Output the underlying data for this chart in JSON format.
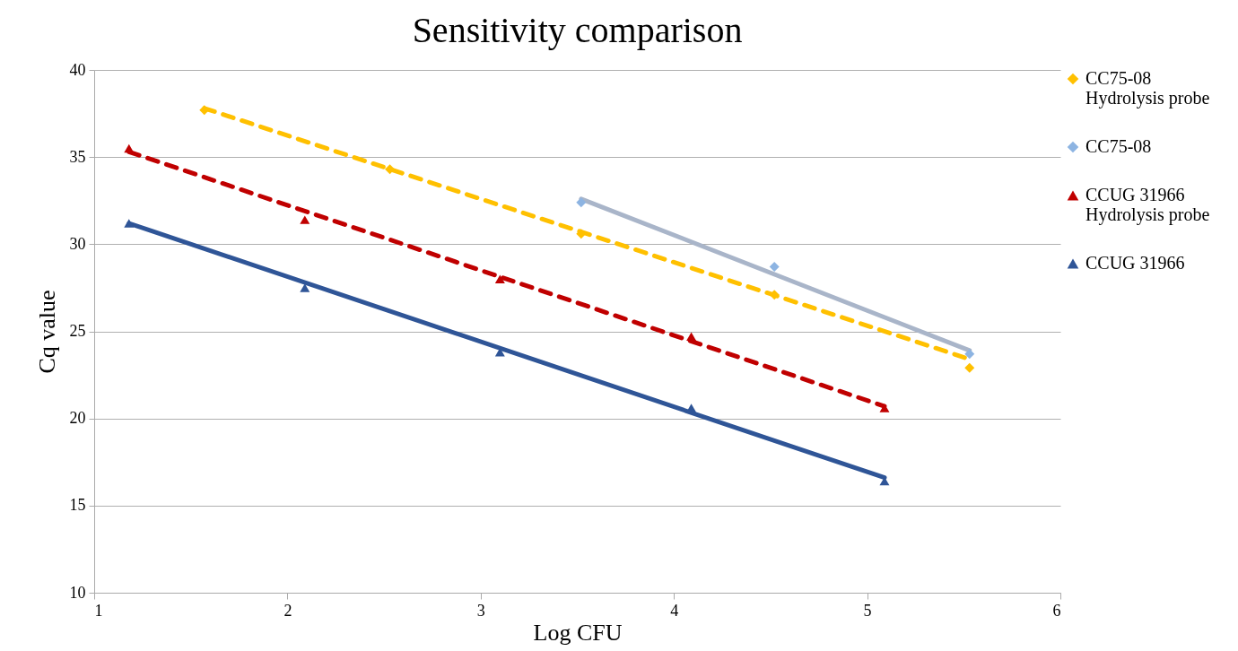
{
  "chart_data": {
    "type": "scatter",
    "title": "Sensitivity comparison",
    "xlabel": "Log CFU",
    "ylabel": "Cq value",
    "xlim": [
      1,
      6
    ],
    "xticks": [
      1,
      2,
      3,
      4,
      5,
      6
    ],
    "ylim": [
      10,
      40
    ],
    "yticks": [
      10,
      15,
      20,
      25,
      30,
      35,
      40
    ],
    "grid": "y",
    "legend": "right",
    "series": [
      {
        "name": "CC75-08 Hydrolysis probe",
        "color": "#ffc000",
        "marker": "diamond",
        "x": [
          1.57,
          2.53,
          3.52,
          4.52,
          5.53
        ],
        "values": [
          37.7,
          34.3,
          30.6,
          27.1,
          22.9
        ]
      },
      {
        "name": "CC75-08",
        "color": "#8db4e2",
        "marker": "diamond",
        "x": [
          3.52,
          4.52,
          5.53
        ],
        "values": [
          32.4,
          28.7,
          23.7
        ]
      },
      {
        "name": "CCUG 31966 Hydrolysis probe",
        "color": "#c00000",
        "marker": "triangle",
        "x": [
          1.18,
          2.09,
          3.1,
          4.09,
          5.09
        ],
        "values": [
          35.5,
          31.4,
          28.0,
          24.7,
          20.6
        ]
      },
      {
        "name": "CCUG 31966",
        "color": "#2f5597",
        "marker": "triangle",
        "x": [
          1.18,
          2.09,
          3.1,
          4.09,
          5.09
        ],
        "values": [
          31.2,
          27.5,
          23.8,
          20.6,
          16.4
        ]
      },
      {
        "type": "line",
        "color": "#ffc000",
        "line_style": "dashed",
        "x": [
          1.57,
          5.53
        ],
        "values": [
          37.8,
          23.4
        ]
      },
      {
        "type": "line",
        "color": "#a9b5c9",
        "line_style": "solid",
        "x": [
          3.52,
          5.53
        ],
        "values": [
          32.6,
          23.9
        ]
      },
      {
        "type": "line",
        "color": "#c00000",
        "line_style": "dashed",
        "x": [
          1.18,
          5.09
        ],
        "values": [
          35.3,
          20.7
        ]
      },
      {
        "type": "line",
        "color": "#2f5597",
        "line_style": "solid",
        "x": [
          1.18,
          5.09
        ],
        "values": [
          31.2,
          16.6
        ]
      }
    ]
  }
}
